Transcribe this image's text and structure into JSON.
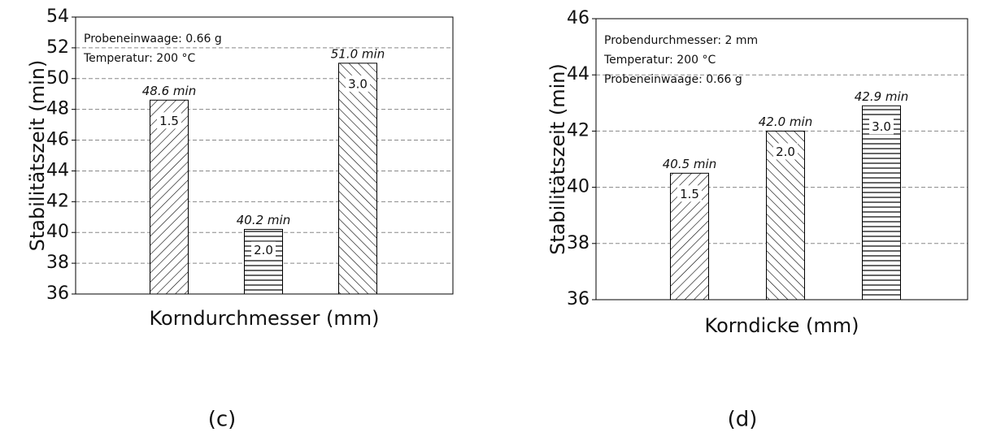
{
  "chart_data": [
    {
      "type": "bar",
      "panel": "(c)",
      "x_label": "Korndurchmesser (mm)",
      "y_label": "Stabilitätszeit (min)",
      "annotations": [
        "Probeneinwaage: 0.66 g",
        "Temperatur: 200 °C"
      ],
      "categories": [
        "1.5",
        "2.0",
        "3.0"
      ],
      "values": [
        48.6,
        40.2,
        51.0
      ],
      "value_labels": [
        "48.6 min",
        "40.2 min",
        "51.0 min"
      ],
      "hatches": [
        "back",
        "horizontal",
        "forward"
      ],
      "color": "#000000",
      "label_color": "#1c1ccc",
      "ylim": [
        36,
        54
      ],
      "yticks": [
        36,
        38,
        40,
        42,
        44,
        46,
        48,
        50,
        52,
        54
      ],
      "grid": true
    },
    {
      "type": "bar",
      "panel": "(d)",
      "x_label": "Korndicke (mm)",
      "y_label": "Stabilitätszeit (min)",
      "annotations": [
        "Probendurchmesser: 2 mm",
        "Temperatur: 200 °C",
        "Probeneinwaage: 0.66 g"
      ],
      "categories": [
        "1.5",
        "2.0",
        "3.0"
      ],
      "values": [
        40.5,
        42.0,
        42.9
      ],
      "value_labels": [
        "40.5 min",
        "42.0 min",
        "42.9 min"
      ],
      "hatches": [
        "back",
        "forward",
        "horizontal"
      ],
      "color": "#000000",
      "label_color": "#1c1ccc",
      "ylim": [
        36,
        46
      ],
      "yticks": [
        36,
        38,
        40,
        42,
        44,
        46
      ],
      "grid": true
    }
  ]
}
